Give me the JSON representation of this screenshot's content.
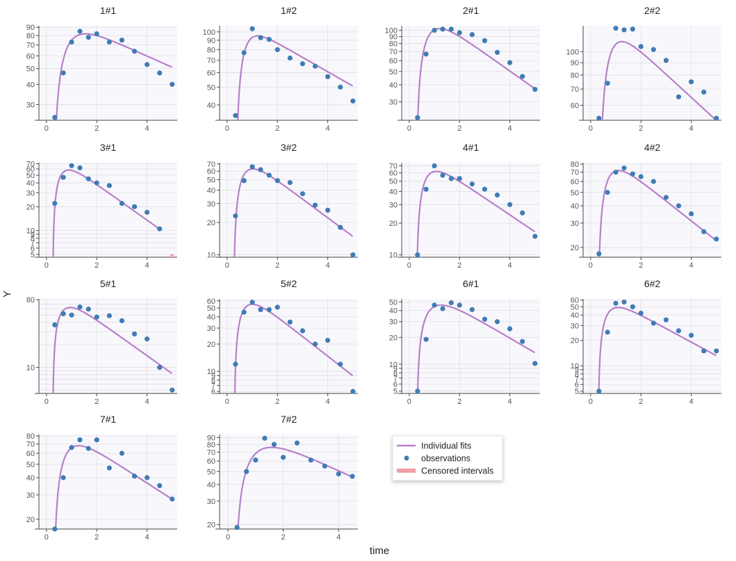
{
  "figure": {
    "xlabel": "time",
    "ylabel": "Y",
    "yscale": "log",
    "colors": {
      "plot_background": "#f8f8fc",
      "grid": "#dddde6",
      "axis": "#444444",
      "fit_line": "#b77fc9",
      "observation": "#3f7cb5",
      "censored": "#f0a0a3"
    }
  },
  "legend": {
    "items": [
      {
        "label": "Individual fits",
        "kind": "line"
      },
      {
        "label": "observations",
        "kind": "point"
      },
      {
        "label": "Censored intervals",
        "kind": "rect"
      }
    ]
  },
  "chart_data": [
    {
      "type": "scatter",
      "title": "1#1",
      "xlim": [
        -0.3,
        5.2
      ],
      "xticks": [
        0,
        2,
        4
      ],
      "ylim": [
        24,
        92
      ],
      "yticks": [
        30,
        40,
        50,
        60,
        70,
        80,
        90
      ],
      "observations": [
        [
          0.33,
          25
        ],
        [
          0.67,
          47
        ],
        [
          1,
          73
        ],
        [
          1.33,
          85
        ],
        [
          1.67,
          78
        ],
        [
          2,
          82
        ],
        [
          2.5,
          73
        ],
        [
          3,
          75
        ],
        [
          3.5,
          64
        ],
        [
          4,
          53
        ],
        [
          4.5,
          47
        ],
        [
          5,
          40
        ]
      ],
      "fit": {
        "ka": 2.2,
        "ke": 0.16,
        "t0": 0.27,
        "cmax": 82
      },
      "censored": []
    },
    {
      "type": "scatter",
      "title": "1#2",
      "xlim": [
        -0.3,
        5.2
      ],
      "xticks": [
        0,
        2,
        4
      ],
      "ylim": [
        33,
        108
      ],
      "yticks": [
        40,
        50,
        60,
        70,
        80,
        90,
        100
      ],
      "observations": [
        [
          0.33,
          35
        ],
        [
          0.67,
          77
        ],
        [
          1,
          104
        ],
        [
          1.33,
          93
        ],
        [
          1.67,
          91
        ],
        [
          2,
          80
        ],
        [
          2.5,
          72
        ],
        [
          3,
          67
        ],
        [
          3.5,
          65
        ],
        [
          4,
          57
        ],
        [
          4.5,
          50
        ],
        [
          5,
          42
        ]
      ],
      "fit": {
        "ka": 3.5,
        "ke": 0.18,
        "t0": 0.32,
        "cmax": 95
      },
      "censored": []
    },
    {
      "type": "scatter",
      "title": "2#1",
      "xlim": [
        -0.3,
        5.2
      ],
      "xticks": [
        0,
        2,
        4
      ],
      "ylim": [
        22,
        108
      ],
      "yticks": [
        30,
        40,
        50,
        60,
        70,
        80,
        90,
        100
      ],
      "observations": [
        [
          0.33,
          23
        ],
        [
          0.67,
          67
        ],
        [
          1,
          100
        ],
        [
          1.33,
          102
        ],
        [
          1.67,
          102
        ],
        [
          2,
          96
        ],
        [
          2.5,
          93
        ],
        [
          3,
          84
        ],
        [
          3.5,
          69
        ],
        [
          4,
          58
        ],
        [
          4.5,
          46
        ],
        [
          5,
          37
        ]
      ],
      "fit": {
        "ka": 2.6,
        "ke": 0.3,
        "t0": 0.27,
        "cmax": 103
      },
      "censored": []
    },
    {
      "type": "scatter",
      "title": "2#2",
      "xlim": [
        -0.3,
        5.2
      ],
      "xticks": [
        0,
        2,
        4
      ],
      "ylim": [
        52,
        128
      ],
      "yticks": [
        60,
        70,
        80,
        90,
        100
      ],
      "observations": [
        [
          0.33,
          53
        ],
        [
          0.67,
          74
        ],
        [
          1,
          125
        ],
        [
          1.33,
          123
        ],
        [
          1.67,
          124
        ],
        [
          2,
          105
        ],
        [
          2.5,
          102
        ],
        [
          3,
          92
        ],
        [
          3.5,
          65
        ],
        [
          4,
          75
        ],
        [
          4.5,
          68
        ],
        [
          5,
          53
        ]
      ],
      "fit": {
        "ka": 3.0,
        "ke": 0.22,
        "t0": 0.3,
        "cmax": 110
      },
      "censored": []
    },
    {
      "type": "scatter",
      "title": "3#1",
      "xlim": [
        -0.3,
        5.2
      ],
      "xticks": [
        0,
        2,
        4
      ],
      "ylim": [
        4.6,
        72
      ],
      "yticks": [
        5,
        6,
        7,
        8,
        9,
        10,
        20,
        30,
        40,
        50,
        60,
        70
      ],
      "observations": [
        [
          0.33,
          22
        ],
        [
          0.67,
          47
        ],
        [
          1,
          66
        ],
        [
          1.33,
          62
        ],
        [
          1.67,
          45
        ],
        [
          2,
          40
        ],
        [
          2.5,
          37
        ],
        [
          3,
          22
        ],
        [
          3.5,
          20
        ],
        [
          4,
          17
        ],
        [
          4.5,
          10.5
        ]
      ],
      "fit": {
        "ka": 3.5,
        "ke": 0.52,
        "t0": 0.25,
        "cmax": 58
      },
      "censored": [
        [
          4.92,
          5.05,
          4.6,
          5
        ]
      ]
    },
    {
      "type": "scatter",
      "title": "3#2",
      "xlim": [
        -0.3,
        5.2
      ],
      "xticks": [
        0,
        2,
        4
      ],
      "ylim": [
        9.5,
        72
      ],
      "yticks": [
        10,
        20,
        30,
        40,
        50,
        60,
        70
      ],
      "observations": [
        [
          0.33,
          23
        ],
        [
          0.67,
          49
        ],
        [
          1,
          66
        ],
        [
          1.33,
          62
        ],
        [
          1.67,
          55
        ],
        [
          2,
          49
        ],
        [
          2.5,
          47
        ],
        [
          3,
          37
        ],
        [
          3.5,
          29
        ],
        [
          4,
          26
        ],
        [
          4.5,
          18
        ],
        [
          5,
          10
        ]
      ],
      "fit": {
        "ka": 3.0,
        "ke": 0.4,
        "t0": 0.25,
        "cmax": 63
      },
      "censored": []
    },
    {
      "type": "scatter",
      "title": "4#1",
      "xlim": [
        -0.3,
        5.2
      ],
      "xticks": [
        0,
        2,
        4
      ],
      "ylim": [
        9.5,
        75
      ],
      "yticks": [
        10,
        20,
        30,
        40,
        50,
        60,
        70
      ],
      "observations": [
        [
          0.33,
          10
        ],
        [
          0.67,
          42
        ],
        [
          1,
          70
        ],
        [
          1.33,
          57
        ],
        [
          1.67,
          53
        ],
        [
          2,
          53
        ],
        [
          2.5,
          47
        ],
        [
          3,
          42
        ],
        [
          3.5,
          37
        ],
        [
          4,
          30
        ],
        [
          4.5,
          25
        ],
        [
          5,
          15
        ]
      ],
      "fit": {
        "ka": 3.0,
        "ke": 0.37,
        "t0": 0.28,
        "cmax": 62
      },
      "censored": []
    },
    {
      "type": "scatter",
      "title": "4#2",
      "xlim": [
        -0.3,
        5.2
      ],
      "xticks": [
        0,
        2,
        4
      ],
      "ylim": [
        17,
        82
      ],
      "yticks": [
        20,
        30,
        40,
        50,
        60,
        70,
        80
      ],
      "observations": [
        [
          0.33,
          18
        ],
        [
          0.67,
          50
        ],
        [
          1,
          70
        ],
        [
          1.33,
          75
        ],
        [
          1.67,
          68
        ],
        [
          2,
          65
        ],
        [
          2.5,
          60
        ],
        [
          3,
          46
        ],
        [
          3.5,
          40
        ],
        [
          4,
          35
        ],
        [
          4.5,
          26
        ],
        [
          5,
          23
        ]
      ],
      "fit": {
        "ka": 3.0,
        "ke": 0.33,
        "t0": 0.28,
        "cmax": 72
      },
      "censored": []
    },
    {
      "type": "scatter",
      "title": "5#1",
      "xlim": [
        -0.3,
        5.2
      ],
      "xticks": [
        0,
        2,
        4
      ],
      "ylim": [
        4.5,
        82
      ],
      "yticks": [
        10,
        80
      ],
      "observations": [
        [
          0.33,
          37
        ],
        [
          0.67,
          52
        ],
        [
          1,
          50
        ],
        [
          1.33,
          64
        ],
        [
          1.67,
          60
        ],
        [
          2,
          47
        ],
        [
          2.5,
          49
        ],
        [
          3,
          42
        ],
        [
          3.5,
          28
        ],
        [
          4,
          24
        ],
        [
          4.5,
          10
        ],
        [
          5,
          5
        ]
      ],
      "fit": {
        "ka": 3.0,
        "ke": 0.55,
        "t0": 0.25,
        "cmax": 63
      },
      "censored": []
    },
    {
      "type": "scatter",
      "title": "5#2",
      "xlim": [
        -0.3,
        5.2
      ],
      "xticks": [
        0,
        2,
        4
      ],
      "ylim": [
        5.7,
        63
      ],
      "yticks": [
        6,
        7,
        8,
        9,
        10,
        20,
        30,
        40,
        50,
        60
      ],
      "observations": [
        [
          0.33,
          12
        ],
        [
          0.67,
          45
        ],
        [
          1,
          58
        ],
        [
          1.33,
          48
        ],
        [
          1.67,
          48
        ],
        [
          2,
          51
        ],
        [
          2.5,
          35
        ],
        [
          3,
          28
        ],
        [
          3.5,
          20
        ],
        [
          4,
          22
        ],
        [
          4.5,
          12
        ],
        [
          5,
          6
        ]
      ],
      "fit": {
        "ka": 3.0,
        "ke": 0.5,
        "t0": 0.28,
        "cmax": 55
      },
      "censored": []
    },
    {
      "type": "scatter",
      "title": "6#1",
      "xlim": [
        -0.3,
        5.2
      ],
      "xticks": [
        0,
        2,
        4
      ],
      "ylim": [
        4.7,
        54
      ],
      "yticks": [
        5,
        6,
        7,
        8,
        9,
        10,
        20,
        30,
        40,
        50
      ],
      "observations": [
        [
          0.33,
          5
        ],
        [
          0.67,
          19
        ],
        [
          1,
          46
        ],
        [
          1.33,
          42
        ],
        [
          1.67,
          49
        ],
        [
          2,
          46
        ],
        [
          2.5,
          41
        ],
        [
          3,
          32
        ],
        [
          3.5,
          30
        ],
        [
          4,
          25
        ],
        [
          4.5,
          18
        ],
        [
          5,
          10.2
        ]
      ],
      "fit": {
        "ka": 2.2,
        "ke": 0.38,
        "t0": 0.3,
        "cmax": 46
      },
      "censored": []
    },
    {
      "type": "scatter",
      "title": "6#2",
      "xlim": [
        -0.3,
        5.2
      ],
      "xticks": [
        0,
        2,
        4
      ],
      "ylim": [
        4.7,
        62
      ],
      "yticks": [
        5,
        6,
        7,
        8,
        9,
        10,
        20,
        30,
        40,
        50,
        60
      ],
      "observations": [
        [
          0.33,
          5
        ],
        [
          0.67,
          25
        ],
        [
          1,
          55
        ],
        [
          1.33,
          57
        ],
        [
          1.67,
          50
        ],
        [
          2,
          42
        ],
        [
          2.5,
          32
        ],
        [
          3,
          35
        ],
        [
          3.5,
          26
        ],
        [
          4,
          23
        ],
        [
          4.5,
          15
        ],
        [
          5,
          15
        ]
      ],
      "fit": {
        "ka": 3.0,
        "ke": 0.37,
        "t0": 0.3,
        "cmax": 49
      },
      "censored": []
    },
    {
      "type": "scatter",
      "title": "7#1",
      "xlim": [
        -0.3,
        5.2
      ],
      "xticks": [
        0,
        2,
        4
      ],
      "ylim": [
        17,
        82
      ],
      "yticks": [
        20,
        30,
        40,
        50,
        60,
        70,
        80
      ],
      "observations": [
        [
          0.33,
          17
        ],
        [
          0.67,
          40
        ],
        [
          1,
          66
        ],
        [
          1.33,
          75
        ],
        [
          1.67,
          65
        ],
        [
          2,
          75
        ],
        [
          2.5,
          47
        ],
        [
          3,
          60
        ],
        [
          3.5,
          41
        ],
        [
          4,
          40
        ],
        [
          4.5,
          35
        ],
        [
          5,
          28
        ]
      ],
      "fit": {
        "ka": 2.5,
        "ke": 0.27,
        "t0": 0.28,
        "cmax": 68
      },
      "censored": []
    },
    {
      "type": "scatter",
      "title": "7#2",
      "xlim": [
        -0.3,
        4.7
      ],
      "xticks": [
        0,
        2,
        4
      ],
      "ylim": [
        18.5,
        95
      ],
      "yticks": [
        20,
        30,
        40,
        50,
        60,
        70,
        80,
        90
      ],
      "observations": [
        [
          0.33,
          19
        ],
        [
          0.67,
          50
        ],
        [
          1,
          61
        ],
        [
          1.33,
          89
        ],
        [
          1.67,
          80
        ],
        [
          2,
          64
        ],
        [
          2.5,
          82
        ],
        [
          3,
          61
        ],
        [
          3.5,
          55
        ],
        [
          4,
          48
        ],
        [
          4.5,
          46
        ]
      ],
      "fit": {
        "ka": 1.8,
        "ke": 0.22,
        "t0": 0.25,
        "cmax": 76
      },
      "censored": []
    }
  ]
}
